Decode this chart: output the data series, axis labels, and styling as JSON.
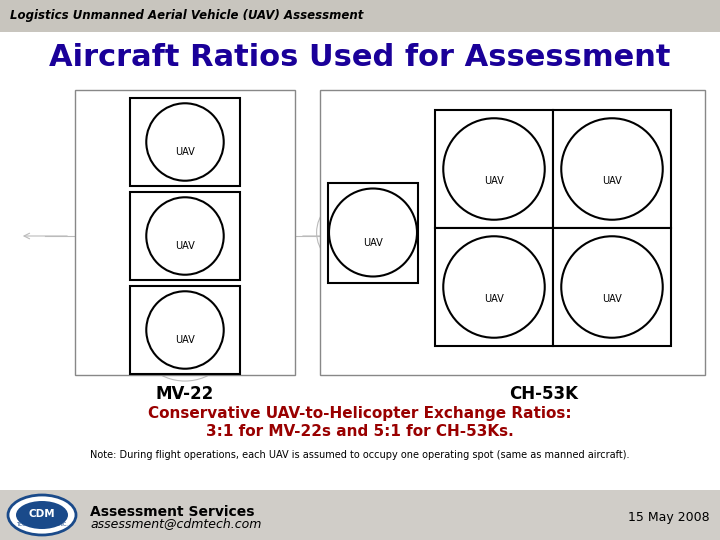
{
  "title": "Aircraft Ratios Used for Assessment",
  "subtitle": "Logistics Unmanned Aerial Vehicle (UAV) Assessment",
  "mv22_label": "MV-22",
  "ch53k_label": "CH-53K",
  "exchange_line1": "Conservative UAV-to-Helicopter Exchange Ratios:",
  "exchange_line2": "3:1 for MV-22s and 5:1 for CH-53Ks.",
  "note": "Note: During flight operations, each UAV is assumed to occupy one operating spot (same as manned aircraft).",
  "footer_services": "Assessment Services",
  "footer_email": "assessment@cdmtech.com",
  "footer_date": "15 May 2008",
  "bg_color": "#e0ddd8",
  "header_color": "#c8c5be",
  "content_color": "#f0eeeb",
  "title_color": "#1a0099",
  "exchange_color": "#990000",
  "footer_bg": "#d0cdc8",
  "uav_label": "UAV",
  "diagram_lw": 1.5,
  "sketch_color": "#bbbbbb"
}
